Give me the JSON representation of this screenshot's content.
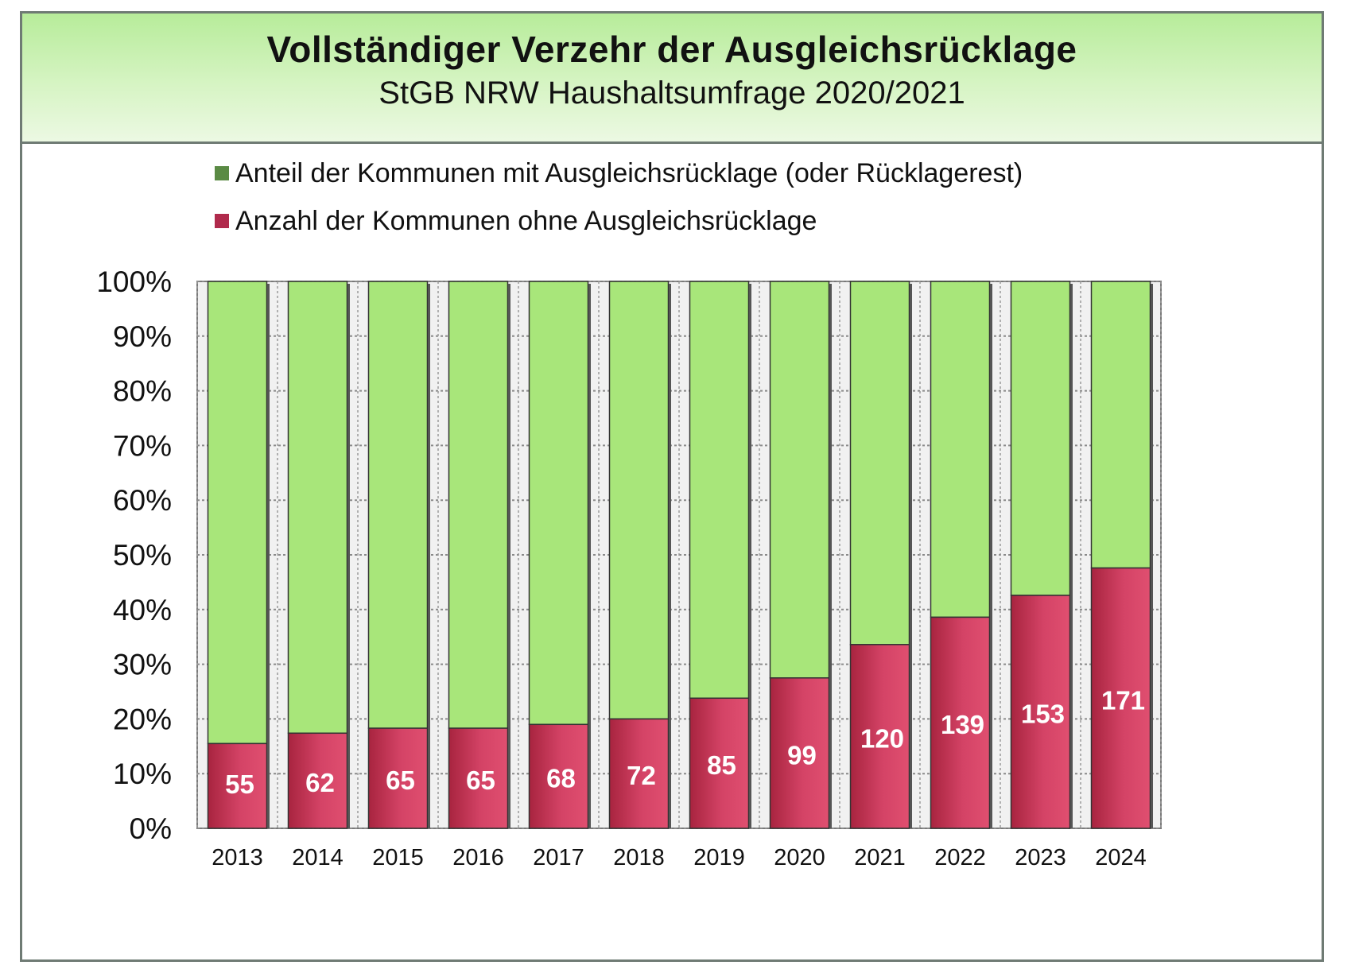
{
  "header": {
    "title": "Vollständiger Verzehr der Ausgleichsrücklage",
    "subtitle": "StGB NRW Haushaltsumfrage 2020/2021"
  },
  "colors": {
    "green": "#a8e67a",
    "green_swatch": "#5a8a44",
    "red": "#c8385a",
    "red_swatch": "#b02a4c"
  },
  "chart_data": {
    "type": "bar",
    "stacked": true,
    "categories": [
      "2013",
      "2014",
      "2015",
      "2016",
      "2017",
      "2018",
      "2019",
      "2020",
      "2021",
      "2022",
      "2023",
      "2024"
    ],
    "series": [
      {
        "name": "Anzahl der Kommunen ohne Ausgleichsrücklage",
        "values_percent": [
          15.5,
          17.4,
          18.3,
          18.3,
          19.0,
          20.0,
          23.8,
          27.5,
          33.6,
          38.6,
          42.6,
          47.6
        ],
        "data_labels": [
          "55",
          "62",
          "65",
          "65",
          "68",
          "72",
          "85",
          "99",
          "120",
          "139",
          "153",
          "171"
        ]
      },
      {
        "name": "Anteil der Kommunen mit Ausgleichsrücklage (oder Rücklagerest)",
        "values_percent": [
          84.5,
          82.6,
          81.7,
          81.7,
          81.0,
          80.0,
          76.2,
          72.5,
          66.4,
          61.4,
          57.4,
          52.4
        ]
      }
    ],
    "legend": [
      "Anteil der Kommunen mit Ausgleichsrücklage (oder Rücklagerest)",
      "Anzahl der Kommunen ohne Ausgleichsrücklage"
    ],
    "y_ticks": [
      "0%",
      "10%",
      "20%",
      "30%",
      "40%",
      "50%",
      "60%",
      "70%",
      "80%",
      "90%",
      "100%"
    ],
    "ylim": [
      0,
      100
    ],
    "grid": true,
    "legend_position": "top-left"
  }
}
